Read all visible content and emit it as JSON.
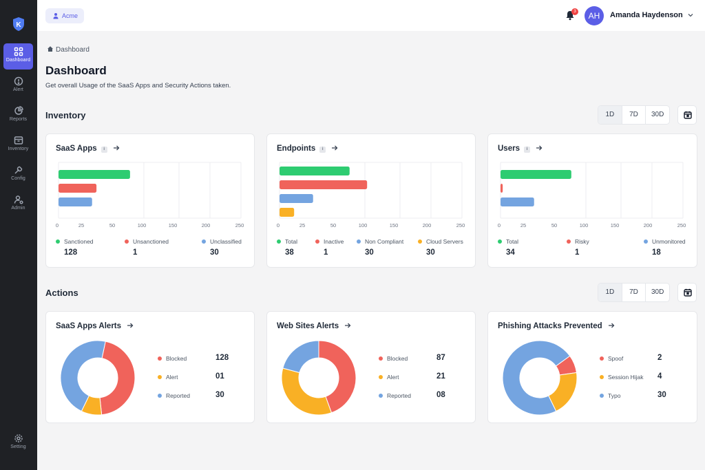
{
  "colors": {
    "green": "#2ecc71",
    "red": "#f0635b",
    "blue": "#74a4e0",
    "orange": "#f9b025",
    "accent": "#5b5ee6"
  },
  "sidebar": {
    "items": [
      {
        "label": "Dashboard",
        "icon": "grid-icon",
        "active": true
      },
      {
        "label": "Alert",
        "icon": "alert-icon"
      },
      {
        "label": "Reports",
        "icon": "pie-chart-icon"
      },
      {
        "label": "Inventory",
        "icon": "box-icon"
      },
      {
        "label": "Config",
        "icon": "wrench-icon"
      },
      {
        "label": "Admin",
        "icon": "user-gear-icon"
      }
    ],
    "setting_label": "Setting"
  },
  "topbar": {
    "org_name": "Acme",
    "notification_count": "3",
    "user_initials": "AH",
    "user_name": "Amanda Haydenson"
  },
  "breadcrumb": "Dashboard",
  "page": {
    "title": "Dashboard",
    "subtitle": "Get overall Usage of the SaaS Apps and Security Actions taken."
  },
  "inventory": {
    "title": "Inventory",
    "ranges": [
      "1D",
      "7D",
      "30D"
    ],
    "active_range": "1D"
  },
  "actions": {
    "title": "Actions",
    "ranges": [
      "1D",
      "7D",
      "30D"
    ],
    "active_range": "1D"
  },
  "chart_data": [
    {
      "type": "bar",
      "orientation": "horizontal",
      "title": "SaaS Apps",
      "xlim": [
        0,
        250
      ],
      "xticks": [
        "0",
        "25",
        "50",
        "100",
        "150",
        "200",
        "250"
      ],
      "series": [
        {
          "name": "Sanctioned",
          "value": 128,
          "display": "128",
          "bar": 98
        },
        {
          "name": "Unsanctioned",
          "value": 1,
          "display": "1",
          "bar": 52
        },
        {
          "name": "Unclassified",
          "value": 30,
          "display": "30",
          "bar": 46
        }
      ]
    },
    {
      "type": "bar",
      "orientation": "horizontal",
      "title": "Endpoints",
      "xlim": [
        0,
        250
      ],
      "xticks": [
        "0",
        "25",
        "50",
        "100",
        "150",
        "200",
        "250"
      ],
      "series": [
        {
          "name": "Total",
          "value": 38,
          "display": "38",
          "bar": 96
        },
        {
          "name": "Inactive",
          "value": 1,
          "display": "1",
          "bar": 120
        },
        {
          "name": "Non Compliant",
          "value": 30,
          "display": "30",
          "bar": 46
        },
        {
          "name": "Cloud Servers",
          "value": 30,
          "display": "30",
          "bar": 20
        }
      ]
    },
    {
      "type": "bar",
      "orientation": "horizontal",
      "title": "Users",
      "xlim": [
        0,
        250
      ],
      "xticks": [
        "0",
        "25",
        "50",
        "100",
        "150",
        "200",
        "250"
      ],
      "series": [
        {
          "name": "Total",
          "value": 34,
          "display": "34",
          "bar": 97
        },
        {
          "name": "Risky",
          "value": 1,
          "display": "1",
          "bar": 3
        },
        {
          "name": "Unmonitored",
          "value": 18,
          "display": "18",
          "bar": 46
        }
      ]
    },
    {
      "type": "pie",
      "title": "SaaS Apps Alerts",
      "slices": [
        {
          "name": "Blocked",
          "value": 128,
          "display": "128",
          "angle": 162
        },
        {
          "name": "Alert",
          "value": 1,
          "display": "01",
          "angle": 32
        },
        {
          "name": "Reported",
          "value": 30,
          "display": "30",
          "angle": 166
        }
      ]
    },
    {
      "type": "pie",
      "title": "Web Sites Alerts",
      "slices": [
        {
          "name": "Blocked",
          "value": 87,
          "display": "87",
          "angle": 160
        },
        {
          "name": "Alert",
          "value": 21,
          "display": "21",
          "angle": 125
        },
        {
          "name": "Reported",
          "value": 8,
          "display": "08",
          "angle": 75
        }
      ]
    },
    {
      "type": "pie",
      "title": "Phishing Attacks Prevented",
      "slices": [
        {
          "name": "Spoof",
          "value": 2,
          "display": "2",
          "angle": 28
        },
        {
          "name": "Session Hijak",
          "value": 4,
          "display": "4",
          "angle": 72
        },
        {
          "name": "Typo",
          "value": 30,
          "display": "30",
          "angle": 260
        }
      ]
    }
  ]
}
